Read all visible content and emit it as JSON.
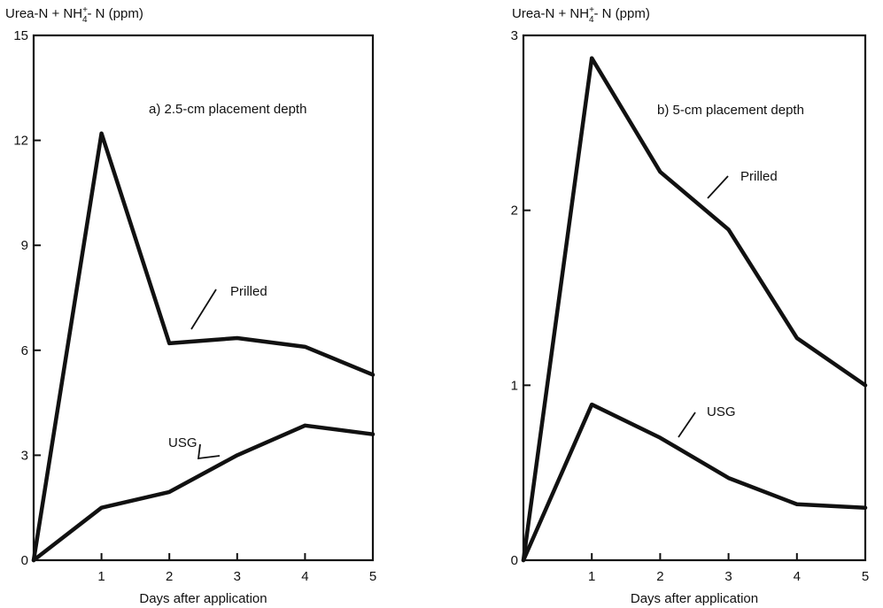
{
  "chart_data": [
    {
      "type": "line",
      "title": "a) 2.5-cm placement depth",
      "ylabel": {
        "main": "Urea-N + NH",
        "sup": "+",
        "sub": "4",
        "rest": "- N (ppm)"
      },
      "xlabel": "Days after application",
      "x": [
        0,
        1,
        2,
        3,
        4,
        5
      ],
      "xlim": [
        0,
        5
      ],
      "ylim": [
        0,
        15
      ],
      "xticks": [
        "1",
        "2",
        "3",
        "4",
        "5"
      ],
      "yticks": [
        "0",
        "3",
        "6",
        "9",
        "12",
        "15"
      ],
      "series": [
        {
          "name": "Prilled",
          "values": [
            0,
            12.2,
            6.2,
            6.35,
            6.1,
            5.3
          ]
        },
        {
          "name": "USG",
          "values": [
            0,
            1.5,
            1.95,
            3.0,
            3.85,
            3.6
          ]
        }
      ],
      "grid": false
    },
    {
      "type": "line",
      "title": "b) 5-cm placement depth",
      "ylabel": {
        "main": "Urea-N + NH",
        "sup": "+",
        "sub": "4",
        "rest": "- N (ppm)"
      },
      "xlabel": "Days after application",
      "x": [
        0,
        1,
        2,
        3,
        4,
        5
      ],
      "xlim": [
        0,
        5
      ],
      "ylim": [
        0,
        3
      ],
      "xticks": [
        "1",
        "2",
        "3",
        "4",
        "5"
      ],
      "yticks": [
        "0",
        "1",
        "2",
        "3"
      ],
      "series": [
        {
          "name": "Prilled",
          "values": [
            0,
            2.87,
            2.22,
            1.89,
            1.27,
            1.0
          ]
        },
        {
          "name": "USG",
          "values": [
            0,
            0.89,
            0.7,
            0.47,
            0.32,
            0.3
          ]
        }
      ],
      "grid": false
    }
  ]
}
